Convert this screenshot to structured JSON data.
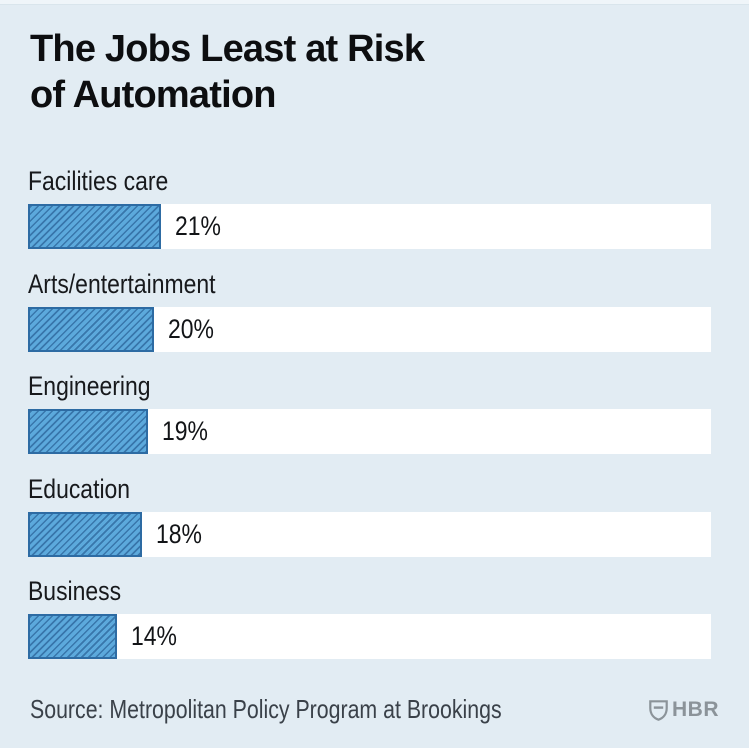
{
  "page": {
    "background_color": "#e2ecf3",
    "top_strip_color": "#eff5f9"
  },
  "header": {
    "title": "The Jobs Least at Risk of Automation",
    "title_line1": "The Jobs Least at Risk",
    "title_line2": "of Automation"
  },
  "chart_data": {
    "type": "bar",
    "orientation": "horizontal",
    "title": "The Jobs Least at Risk of Automation",
    "categories": [
      "Facilities care",
      "Arts/entertainment",
      "Engineering",
      "Education",
      "Business"
    ],
    "values": [
      21,
      20,
      19,
      18,
      14
    ],
    "value_labels": [
      "21%",
      "20%",
      "19%",
      "18%",
      "14%"
    ],
    "unit": "%",
    "xlabel": "",
    "ylabel": "",
    "xlim": [
      0,
      108
    ],
    "grid": false,
    "legend": false,
    "hatch_style": "diagonal-forward",
    "bar_fill_color": "#5ca9dc",
    "bar_hatch_color": "#3876ab",
    "bar_border_color": "#2d6ba3",
    "track_color": "#ffffff"
  },
  "footer": {
    "source": "Source: Metropolitan Policy Program at Brookings",
    "logo_text": "HBR",
    "logo_color": "#8b9399"
  }
}
